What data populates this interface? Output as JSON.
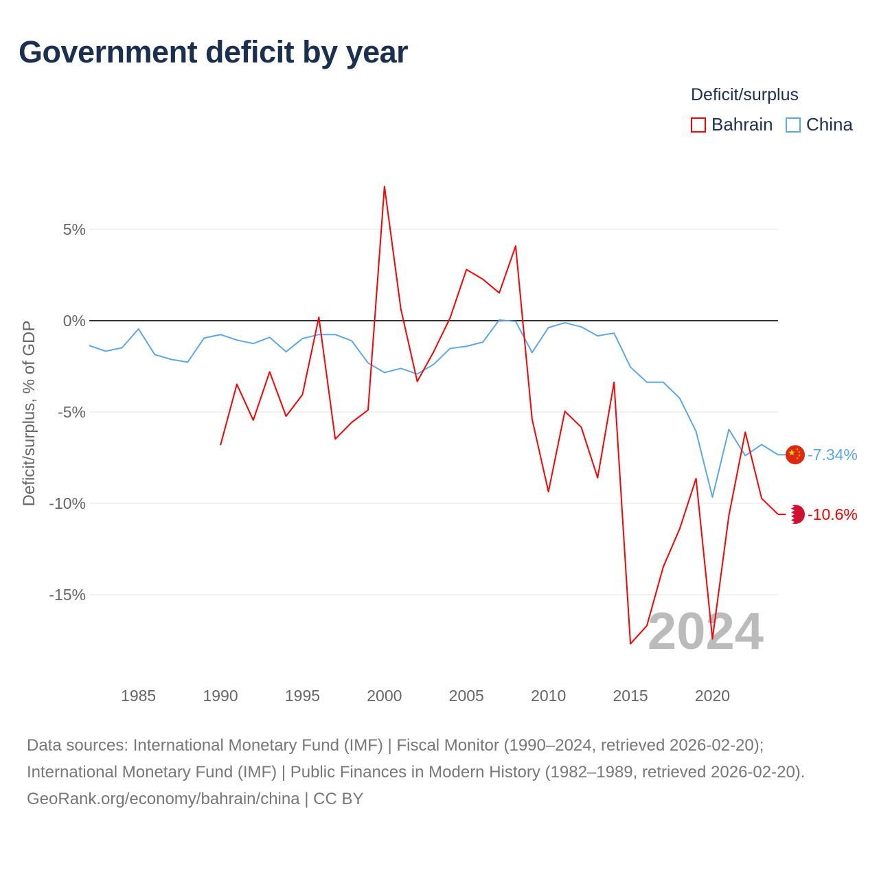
{
  "title": "Government deficit by year",
  "legend": {
    "title": "Deficit/surplus",
    "items": [
      {
        "name": "Bahrain",
        "color": "#ff0000"
      },
      {
        "name": "China",
        "color": "#5ba7e8"
      }
    ]
  },
  "chart_data": {
    "type": "line",
    "title": "Government deficit by year",
    "xlabel": "",
    "ylabel": "Deficit/surplus, % of GDP",
    "xlim": [
      1982,
      2024
    ],
    "ylim": [
      -19.5,
      8
    ],
    "x_ticks": [
      1985,
      1990,
      1995,
      2000,
      2005,
      2010,
      2015,
      2020
    ],
    "x_tick_labels": [
      "1985",
      "1990",
      "1995",
      "2000",
      "2005",
      "2010",
      "2015",
      "2020"
    ],
    "y_ticks": [
      5,
      0,
      -5,
      -10,
      -15
    ],
    "y_tick_labels": [
      "5%",
      "0%",
      "-5%",
      "-10%",
      "-15%"
    ],
    "grid": true,
    "legend_position": "top-right",
    "year_label": "2024",
    "series": [
      {
        "name": "Bahrain",
        "color": "#ff0000",
        "end_label": "-10.6%",
        "x": [
          1990,
          1991,
          1992,
          1993,
          1994,
          1995,
          1996,
          1997,
          1998,
          1999,
          2000,
          2001,
          2002,
          2003,
          2004,
          2005,
          2006,
          2007,
          2008,
          2009,
          2010,
          2011,
          2012,
          2013,
          2014,
          2015,
          2016,
          2017,
          2018,
          2019,
          2020,
          2021,
          2022,
          2023,
          2024
        ],
        "values": [
          -6.82,
          -3.48,
          -5.45,
          -2.8,
          -5.23,
          -4.05,
          0.19,
          -6.48,
          -5.57,
          -4.89,
          7.35,
          0.64,
          -3.33,
          -1.7,
          0.15,
          2.8,
          2.27,
          1.52,
          4.09,
          -5.38,
          -9.36,
          -4.96,
          -5.83,
          -8.6,
          -3.37,
          -17.69,
          -16.7,
          -13.48,
          -11.4,
          -8.64,
          -17.42,
          -10.68,
          -6.1,
          -9.73,
          -10.6
        ]
      },
      {
        "name": "China",
        "color": "#5ba7e8",
        "end_label": "-7.34%",
        "x": [
          1982,
          1983,
          1984,
          1985,
          1986,
          1987,
          1988,
          1989,
          1990,
          1991,
          1992,
          1993,
          1994,
          1995,
          1996,
          1997,
          1998,
          1999,
          2000,
          2001,
          2002,
          2003,
          2004,
          2005,
          2006,
          2007,
          2008,
          2009,
          2010,
          2011,
          2012,
          2013,
          2014,
          2015,
          2016,
          2017,
          2018,
          2019,
          2020,
          2021,
          2022,
          2023,
          2024
        ],
        "values": [
          -1.36,
          -1.67,
          -1.48,
          -0.45,
          -1.86,
          -2.12,
          -2.27,
          -0.95,
          -0.76,
          -1.06,
          -1.25,
          -0.91,
          -1.7,
          -0.98,
          -0.76,
          -0.76,
          -1.1,
          -2.31,
          -2.84,
          -2.61,
          -2.92,
          -2.39,
          -1.52,
          -1.4,
          -1.17,
          0.04,
          -0.04,
          -1.74,
          -0.38,
          -0.11,
          -0.34,
          -0.83,
          -0.68,
          -2.54,
          -3.37,
          -3.37,
          -4.24,
          -6.06,
          -9.66,
          -5.95,
          -7.39,
          -6.78,
          -7.34
        ]
      }
    ]
  },
  "footer": {
    "sources": "Data sources: International Monetary Fund (IMF) | Fiscal Monitor (1990–2024, retrieved 2026-02-20); International Monetary Fund (IMF) | Public Finances in Modern History (1982–1989, retrieved 2026-02-20).",
    "credit": "GeoRank.org/economy/bahrain/china | CC BY"
  }
}
